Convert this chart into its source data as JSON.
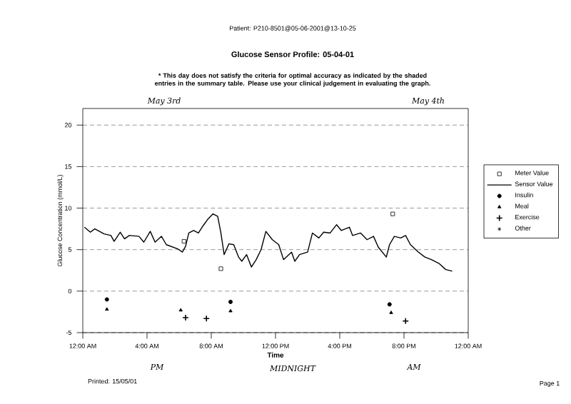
{
  "chart_data": {
    "type": "line",
    "title": "Glucose Sensor Profile: 05-04-01",
    "subtitle": "* This day does not satisfy the criteria for optimal accuracy as indicated by the shaded entries in the summary table. Please use your clinical judgement in evaluating the graph.",
    "xlabel": "Time",
    "ylabel": "Glucose Concentration (mmol/L)",
    "annotations": [
      "Patient: P210-8501@05-06-2001@13-10-25",
      "May 3rd",
      "May 4th",
      "PM",
      "MIDNIGHT",
      "AM",
      "Printed: 15/05/01",
      "Page 1"
    ],
    "xlim": [
      0,
      24
    ],
    "ylim": [
      -5,
      22
    ],
    "xticks": [
      {
        "value": 0,
        "label": "12:00 AM"
      },
      {
        "value": 4,
        "label": "4:00 AM"
      },
      {
        "value": 8,
        "label": "8:00 AM"
      },
      {
        "value": 12,
        "label": "12:00 PM"
      },
      {
        "value": 16,
        "label": "4:00 PM"
      },
      {
        "value": 20,
        "label": "8:00 PM"
      },
      {
        "value": 24,
        "label": "12:00 AM"
      }
    ],
    "yticks": [
      -5,
      0,
      5,
      10,
      15,
      20
    ],
    "grid": "y",
    "legend": "right",
    "series": [
      {
        "name": "Meter Value",
        "type": "scatter",
        "marker": "square",
        "color": "#000000",
        "x": [
          6.3,
          8.6,
          19.3
        ],
        "values": [
          6.0,
          2.7,
          9.3
        ]
      },
      {
        "name": "Sensor Value",
        "marker": "none",
        "color": "#000000",
        "x": [
          0.1,
          0.47,
          0.75,
          1.32,
          1.75,
          1.95,
          2.33,
          2.6,
          2.9,
          3.5,
          3.8,
          4.2,
          4.5,
          4.9,
          5.2,
          5.9,
          6.2,
          6.4,
          6.6,
          6.9,
          7.2,
          7.5,
          7.8,
          8.1,
          8.4,
          8.6,
          8.8,
          9.1,
          9.4,
          9.7,
          9.9,
          10.2,
          10.5,
          10.8,
          11.1,
          11.4,
          11.8,
          12.2,
          12.5,
          13.0,
          13.2,
          13.5,
          14.0,
          14.3,
          14.7,
          15.0,
          15.4,
          15.8,
          16.1,
          16.6,
          16.8,
          17.3,
          17.7,
          18.1,
          18.4,
          18.9,
          19.1,
          19.4,
          19.8,
          20.1,
          20.4,
          20.9,
          21.3,
          21.7,
          22.2,
          22.6,
          23.0
        ],
        "values": [
          7.7,
          7.1,
          7.5,
          6.9,
          6.7,
          6.0,
          7.1,
          6.3,
          6.7,
          6.6,
          5.9,
          7.2,
          5.9,
          6.6,
          5.6,
          5.1,
          4.7,
          5.4,
          7.0,
          7.3,
          7.0,
          7.9,
          8.7,
          9.3,
          9.0,
          7.0,
          4.4,
          5.7,
          5.6,
          4.1,
          3.6,
          4.4,
          2.9,
          3.8,
          5.0,
          7.2,
          6.2,
          5.6,
          3.8,
          4.7,
          3.6,
          4.4,
          4.7,
          7.0,
          6.4,
          7.1,
          7.0,
          8.0,
          7.3,
          7.7,
          6.7,
          7.0,
          6.2,
          6.6,
          5.3,
          4.1,
          5.6,
          6.6,
          6.4,
          6.7,
          5.6,
          4.7,
          4.1,
          3.8,
          3.3,
          2.6,
          2.4
        ]
      },
      {
        "name": "Insulin",
        "type": "scatter",
        "marker": "circle",
        "color": "#000000",
        "x": [
          1.5,
          9.2,
          19.1
        ],
        "values": [
          -1.0,
          -1.3,
          -1.6
        ]
      },
      {
        "name": "Meal",
        "type": "scatter",
        "marker": "triangle",
        "color": "#000000",
        "x": [
          1.5,
          6.1,
          9.2,
          19.2
        ],
        "values": [
          -2.2,
          -2.3,
          -2.4,
          -2.6
        ]
      },
      {
        "name": "Exercise",
        "type": "scatter",
        "marker": "cross",
        "color": "#000000",
        "x": [
          6.4,
          7.7,
          20.1
        ],
        "values": [
          -3.2,
          -3.3,
          -3.6
        ]
      },
      {
        "name": "Other",
        "type": "scatter",
        "marker": "star",
        "color": "#000000"
      }
    ]
  }
}
